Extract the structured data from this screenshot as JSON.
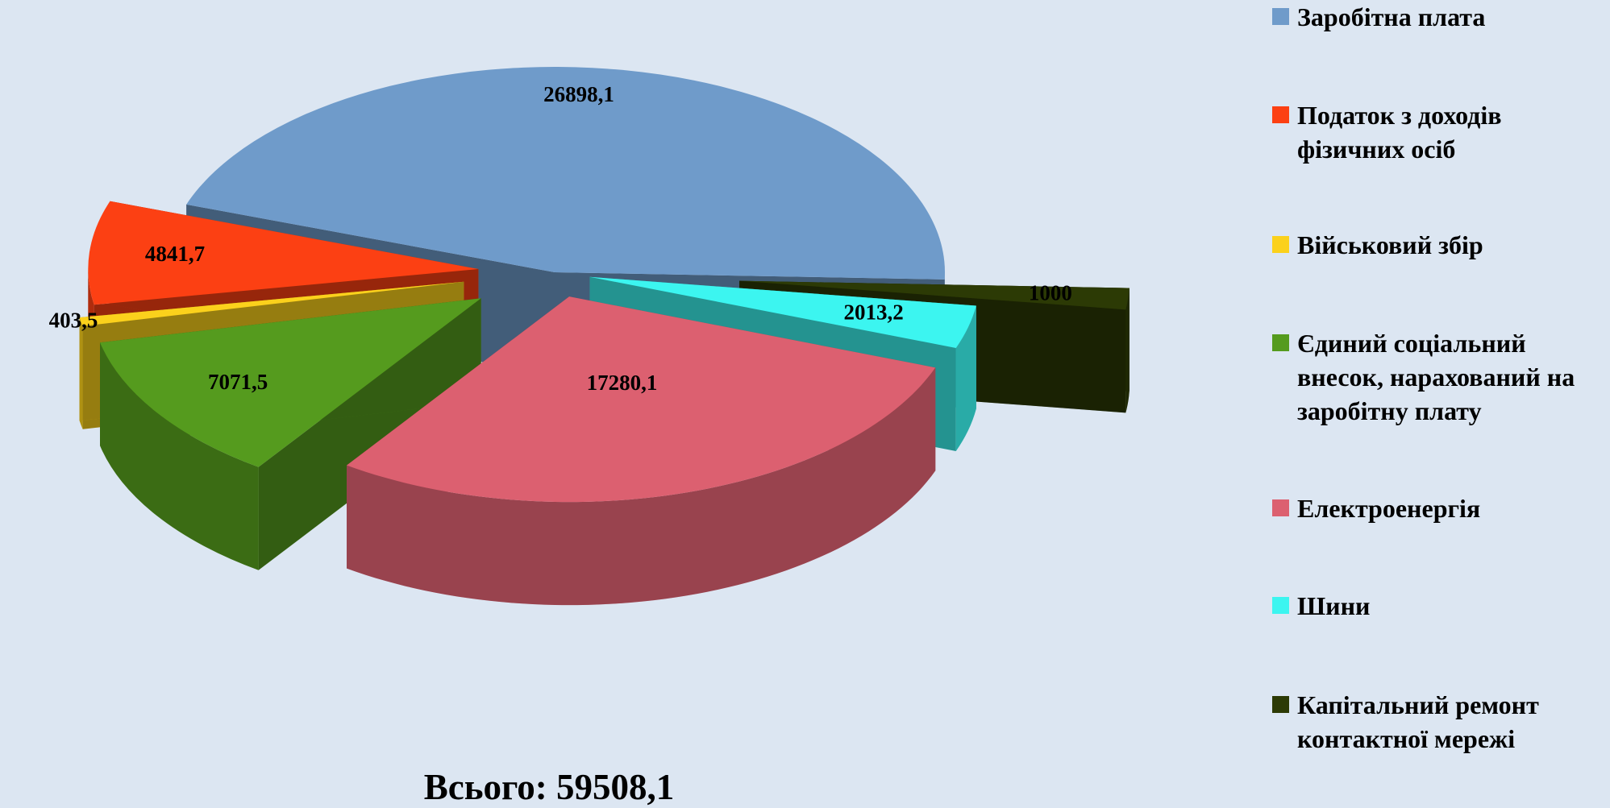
{
  "chart_data": {
    "type": "pie",
    "categories": [
      "Заробітна плата",
      "Податок з доходів фізичних осіб",
      "Військовий збір",
      "Єдиний соціальний внесок, нарахований на заробітну плату",
      "Електроенергія",
      "Шини",
      "Капітальний ремонт контактної мережі"
    ],
    "values": [
      26898.1,
      4841.7,
      403.5,
      7071.5,
      17280.1,
      2013.2,
      1000
    ],
    "value_labels": [
      "26898,1",
      "4841,7",
      "403,5",
      "7071,5",
      "17280,1",
      "2013,2",
      "1000"
    ],
    "colors": [
      "#6f9bca",
      "#fc4013",
      "#fbd11c",
      "#559b1e",
      "#dc6070",
      "#3cf5f0",
      "#2c3a05"
    ],
    "total_label": "Всього: 59508,1",
    "legend": "right"
  }
}
